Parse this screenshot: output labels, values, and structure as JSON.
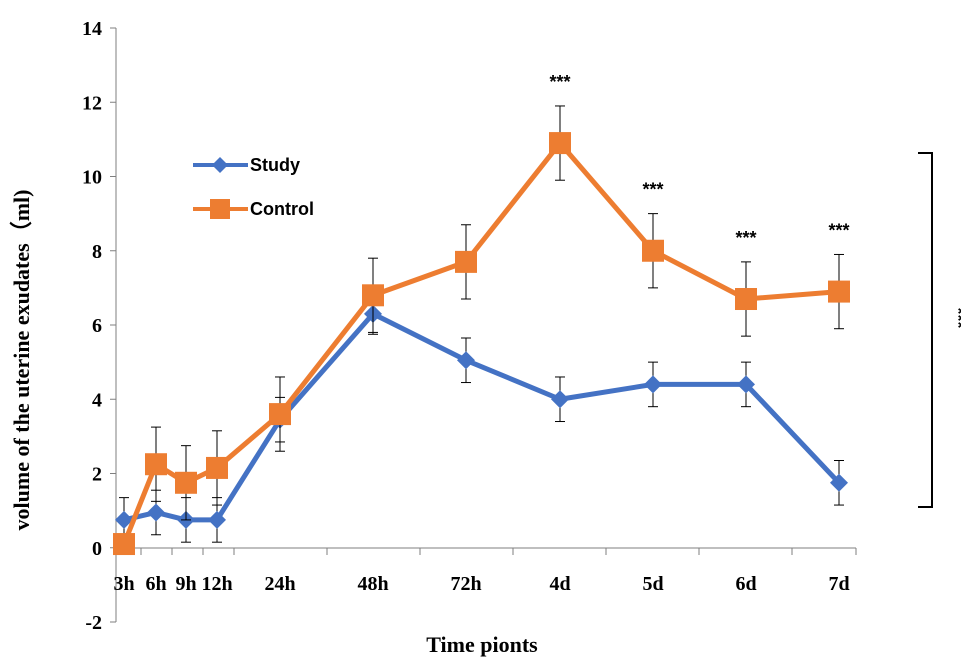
{
  "chart_data": {
    "type": "line",
    "title": "",
    "xlabel": "Time pionts",
    "ylabel": "volume of the uterine exudates（ml)",
    "ylim": [
      -2,
      14
    ],
    "yticks": [
      -2,
      0,
      2,
      4,
      6,
      8,
      10,
      12,
      14
    ],
    "categories": [
      "3h",
      "6h",
      "9h",
      "12h",
      "24h",
      "48h",
      "72h",
      "4d",
      "5d",
      "6d",
      "7d"
    ],
    "legend_placement": "upper-left",
    "grid": false,
    "series": [
      {
        "name": "Study",
        "color": "#4472C4",
        "marker": "diamond",
        "values": [
          0.75,
          0.95,
          0.75,
          0.75,
          3.45,
          6.3,
          5.05,
          4.0,
          4.4,
          4.4,
          1.75
        ],
        "error": [
          0.6,
          0.6,
          0.6,
          0.6,
          0.6,
          0.55,
          0.6,
          0.6,
          0.6,
          0.6,
          0.6
        ]
      },
      {
        "name": "Control",
        "color": "#ED7D31",
        "marker": "square",
        "values": [
          0.1,
          2.25,
          1.75,
          2.15,
          3.6,
          6.8,
          7.7,
          10.9,
          8.0,
          6.7,
          6.9
        ],
        "error": [
          0.0,
          1.0,
          1.0,
          1.0,
          1.0,
          1.0,
          1.0,
          1.0,
          1.0,
          1.0,
          1.0
        ]
      }
    ],
    "annotations": [
      {
        "category": "4d",
        "text": "***"
      },
      {
        "category": "5d",
        "text": "***"
      },
      {
        "category": "6d",
        "text": "***"
      },
      {
        "category": "7d",
        "text": "***"
      }
    ],
    "bracket_label": "***"
  }
}
